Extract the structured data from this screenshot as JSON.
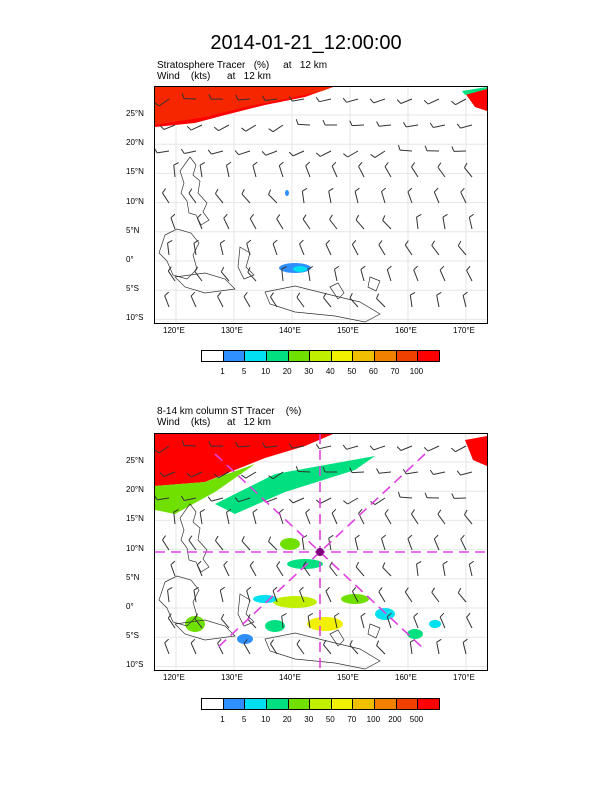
{
  "title": "2014-01-21_12:00:00",
  "panels": [
    {
      "id": "stratosphere",
      "subtitle_line1": "Stratosphere Tracer   (%)     at   12 km",
      "subtitle_line2": "Wind    (kts)      at   12 km",
      "lat_ticks": [
        "25°N",
        "20°N",
        "15°N",
        "10°N",
        "5°N",
        "0°",
        "5°S",
        "10°S"
      ],
      "lon_ticks": [
        "120°E",
        "130°E",
        "140°E",
        "150°E",
        "160°E",
        "170°E"
      ],
      "colorbar_labels": [
        "1",
        "5",
        "10",
        "20",
        "30",
        "40",
        "50",
        "60",
        "70",
        "100"
      ],
      "colorbar_colors": [
        "#ffffff",
        "#2f8fff",
        "#00e0f0",
        "#00e080",
        "#70e000",
        "#c0f000",
        "#f0f000",
        "#f0c000",
        "#f08000",
        "#f04000",
        "#ff0000"
      ]
    },
    {
      "id": "column",
      "subtitle_line1": "8-14 km column ST Tracer    (%)",
      "subtitle_line2": "Wind    (kts)      at   12 km",
      "lat_ticks": [
        "25°N",
        "20°N",
        "15°N",
        "10°N",
        "5°N",
        "0°",
        "5°S",
        "10°S"
      ],
      "lon_ticks": [
        "120°E",
        "130°E",
        "140°E",
        "150°E",
        "160°E",
        "170°E"
      ],
      "colorbar_labels": [
        "1",
        "5",
        "10",
        "20",
        "30",
        "50",
        "70",
        "100",
        "200",
        "500"
      ],
      "colorbar_colors": [
        "#ffffff",
        "#2f8fff",
        "#00e0f0",
        "#00e080",
        "#70e000",
        "#c0f000",
        "#f0f000",
        "#f0c000",
        "#f08000",
        "#f04000",
        "#ff0000"
      ]
    }
  ]
}
